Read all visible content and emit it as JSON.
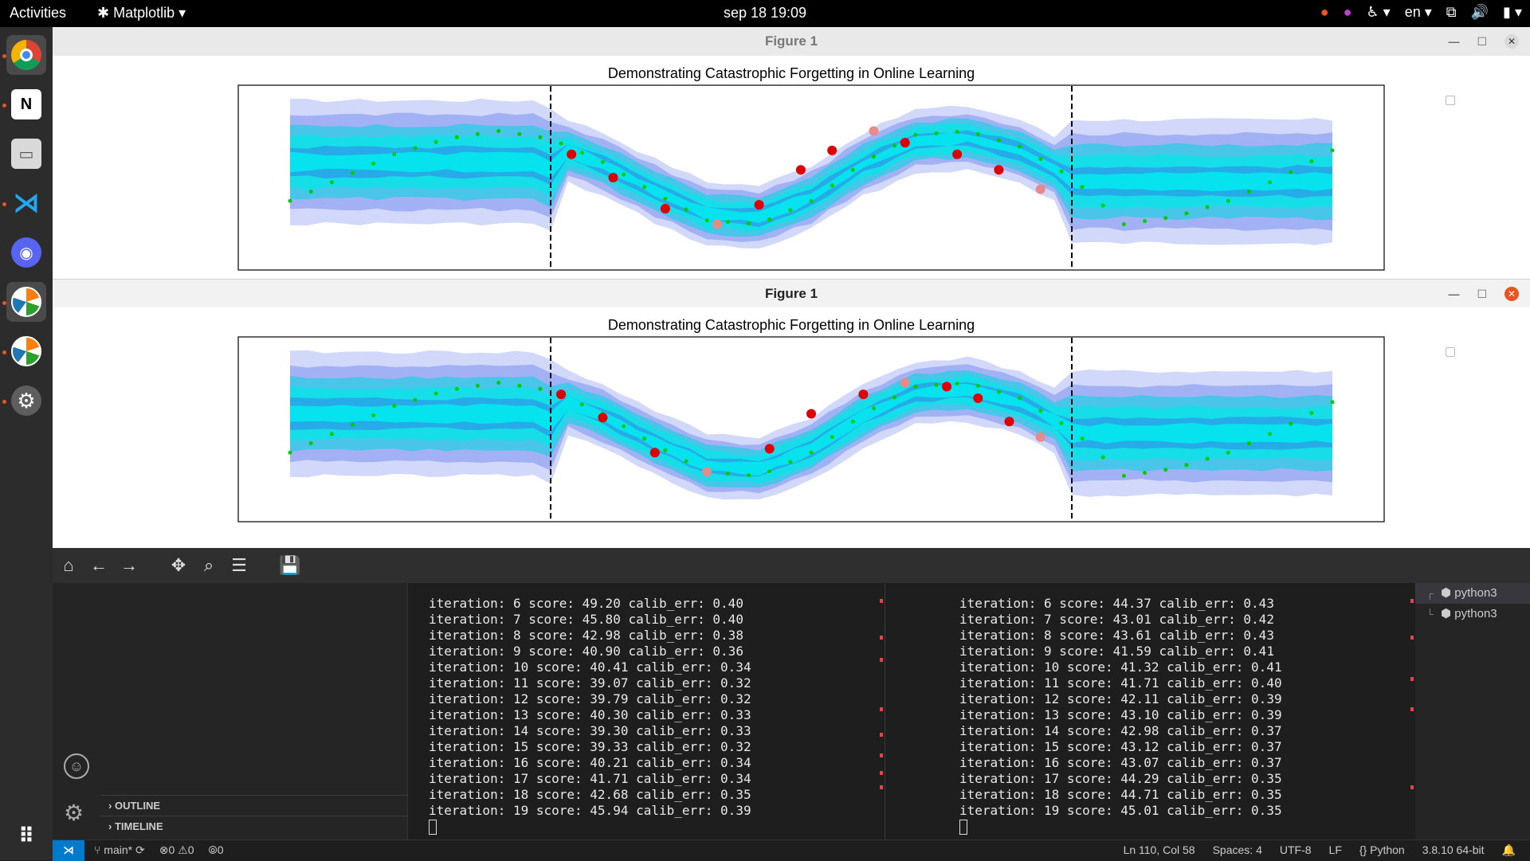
{
  "topbar": {
    "activities": "Activities",
    "app_name": "Matplotlib",
    "clock": "sep 18  19:09",
    "lang": "en"
  },
  "dock": {
    "items": [
      "chrome-icon",
      "notion-icon",
      "files-icon",
      "vscode-icon",
      "discord-icon",
      "matplotlib-icon",
      "matplotlib-icon",
      "settings-icon",
      "app-grid-icon"
    ]
  },
  "figure1": {
    "window_title": "Figure 1",
    "plot_title": "Demonstrating Catastrophic Forgetting in Online Learning"
  },
  "figure2": {
    "window_title": "Figure 1",
    "plot_title": "Demonstrating Catastrophic Forgetting in Online Learning"
  },
  "colors": {
    "accent": "#e95420",
    "cyan_band": "#00e5e5",
    "blue_band": "#4a6ee0",
    "points_green": "#00cc00",
    "points_red": "#dd0000",
    "vscode_blue": "#007acc"
  },
  "chart_data": [
    {
      "type": "area",
      "title": "Demonstrating Catastrophic Forgetting in Online Learning",
      "xlabel": "",
      "ylabel": "",
      "vlines_x": [
        0.25,
        0.75
      ],
      "xlim": [
        0,
        1
      ],
      "ylim": [
        -1.2,
        1.2
      ],
      "grid": false,
      "true_function": {
        "x": [
          0.0,
          0.05,
          0.1,
          0.15,
          0.2,
          0.25,
          0.3,
          0.35,
          0.4,
          0.45,
          0.5,
          0.55,
          0.6,
          0.65,
          0.7,
          0.75,
          0.8,
          0.85,
          0.9,
          0.95,
          1.0
        ],
        "y": [
          -0.3,
          0.0,
          0.3,
          0.5,
          0.6,
          0.5,
          0.2,
          -0.2,
          -0.55,
          -0.6,
          -0.3,
          0.2,
          0.55,
          0.6,
          0.4,
          0.0,
          -0.6,
          -0.5,
          -0.3,
          0.0,
          0.35
        ]
      },
      "observed_points": {
        "x": [
          0.27,
          0.31,
          0.36,
          0.41,
          0.45,
          0.49,
          0.52,
          0.56,
          0.59,
          0.64,
          0.68,
          0.72
        ],
        "y": [
          0.3,
          0.0,
          -0.4,
          -0.6,
          -0.35,
          0.1,
          0.35,
          0.6,
          0.45,
          0.3,
          0.1,
          -0.15
        ]
      }
    },
    {
      "type": "area",
      "title": "Demonstrating Catastrophic Forgetting in Online Learning",
      "xlabel": "",
      "ylabel": "",
      "vlines_x": [
        0.25,
        0.75
      ],
      "xlim": [
        0,
        1
      ],
      "ylim": [
        -1.2,
        1.2
      ],
      "grid": false,
      "true_function": {
        "x": [
          0.0,
          0.05,
          0.1,
          0.15,
          0.2,
          0.25,
          0.3,
          0.35,
          0.4,
          0.45,
          0.5,
          0.55,
          0.6,
          0.65,
          0.7,
          0.75,
          0.8,
          0.85,
          0.9,
          0.95,
          1.0
        ],
        "y": [
          -0.3,
          0.0,
          0.3,
          0.5,
          0.6,
          0.5,
          0.2,
          -0.2,
          -0.55,
          -0.6,
          -0.3,
          0.2,
          0.55,
          0.6,
          0.4,
          0.0,
          -0.6,
          -0.5,
          -0.3,
          0.0,
          0.35
        ]
      },
      "observed_points": {
        "x": [
          0.26,
          0.3,
          0.35,
          0.4,
          0.46,
          0.5,
          0.55,
          0.59,
          0.63,
          0.66,
          0.69,
          0.72
        ],
        "y": [
          0.45,
          0.15,
          -0.3,
          -0.55,
          -0.25,
          0.2,
          0.45,
          0.6,
          0.55,
          0.4,
          0.1,
          -0.1
        ]
      }
    }
  ],
  "toolbar": {
    "buttons": [
      "home-icon",
      "back-icon",
      "forward-icon",
      "pan-icon",
      "zoom-icon",
      "configure-icon",
      "save-icon"
    ]
  },
  "sidebar": {
    "outline": "OUTLINE",
    "timeline": "TIMELINE"
  },
  "terminal_left": [
    "iteration: 6 score: 49.20 calib_err: 0.40",
    "iteration: 7 score: 45.80 calib_err: 0.40",
    "iteration: 8 score: 42.98 calib_err: 0.38",
    "iteration: 9 score: 40.90 calib_err: 0.36",
    "iteration: 10 score: 40.41 calib_err: 0.34",
    "iteration: 11 score: 39.07 calib_err: 0.32",
    "iteration: 12 score: 39.79 calib_err: 0.32",
    "iteration: 13 score: 40.30 calib_err: 0.33",
    "iteration: 14 score: 39.30 calib_err: 0.33",
    "iteration: 15 score: 39.33 calib_err: 0.32",
    "iteration: 16 score: 40.21 calib_err: 0.34",
    "iteration: 17 score: 41.71 calib_err: 0.34",
    "iteration: 18 score: 42.68 calib_err: 0.35",
    "iteration: 19 score: 45.94 calib_err: 0.39"
  ],
  "terminal_right": [
    "iteration: 6 score: 44.37 calib_err: 0.43",
    "iteration: 7 score: 43.01 calib_err: 0.42",
    "iteration: 8 score: 43.61 calib_err: 0.43",
    "iteration: 9 score: 41.59 calib_err: 0.41",
    "iteration: 10 score: 41.32 calib_err: 0.41",
    "iteration: 11 score: 41.71 calib_err: 0.40",
    "iteration: 12 score: 42.11 calib_err: 0.39",
    "iteration: 13 score: 43.10 calib_err: 0.39",
    "iteration: 14 score: 42.98 calib_err: 0.37",
    "iteration: 15 score: 43.12 calib_err: 0.37",
    "iteration: 16 score: 43.07 calib_err: 0.37",
    "iteration: 17 score: 44.29 calib_err: 0.35",
    "iteration: 18 score: 44.71 calib_err: 0.35",
    "iteration: 19 score: 45.01 calib_err: 0.35"
  ],
  "terminals": {
    "items": [
      "python3",
      "python3"
    ]
  },
  "statusbar": {
    "branch": "main*",
    "errors": "0",
    "warnings": "0",
    "ports": "0",
    "position": "Ln 110, Col 58",
    "spaces": "Spaces: 4",
    "encoding": "UTF-8",
    "eol": "LF",
    "language": "Python",
    "interpreter": "3.8.10 64-bit"
  }
}
